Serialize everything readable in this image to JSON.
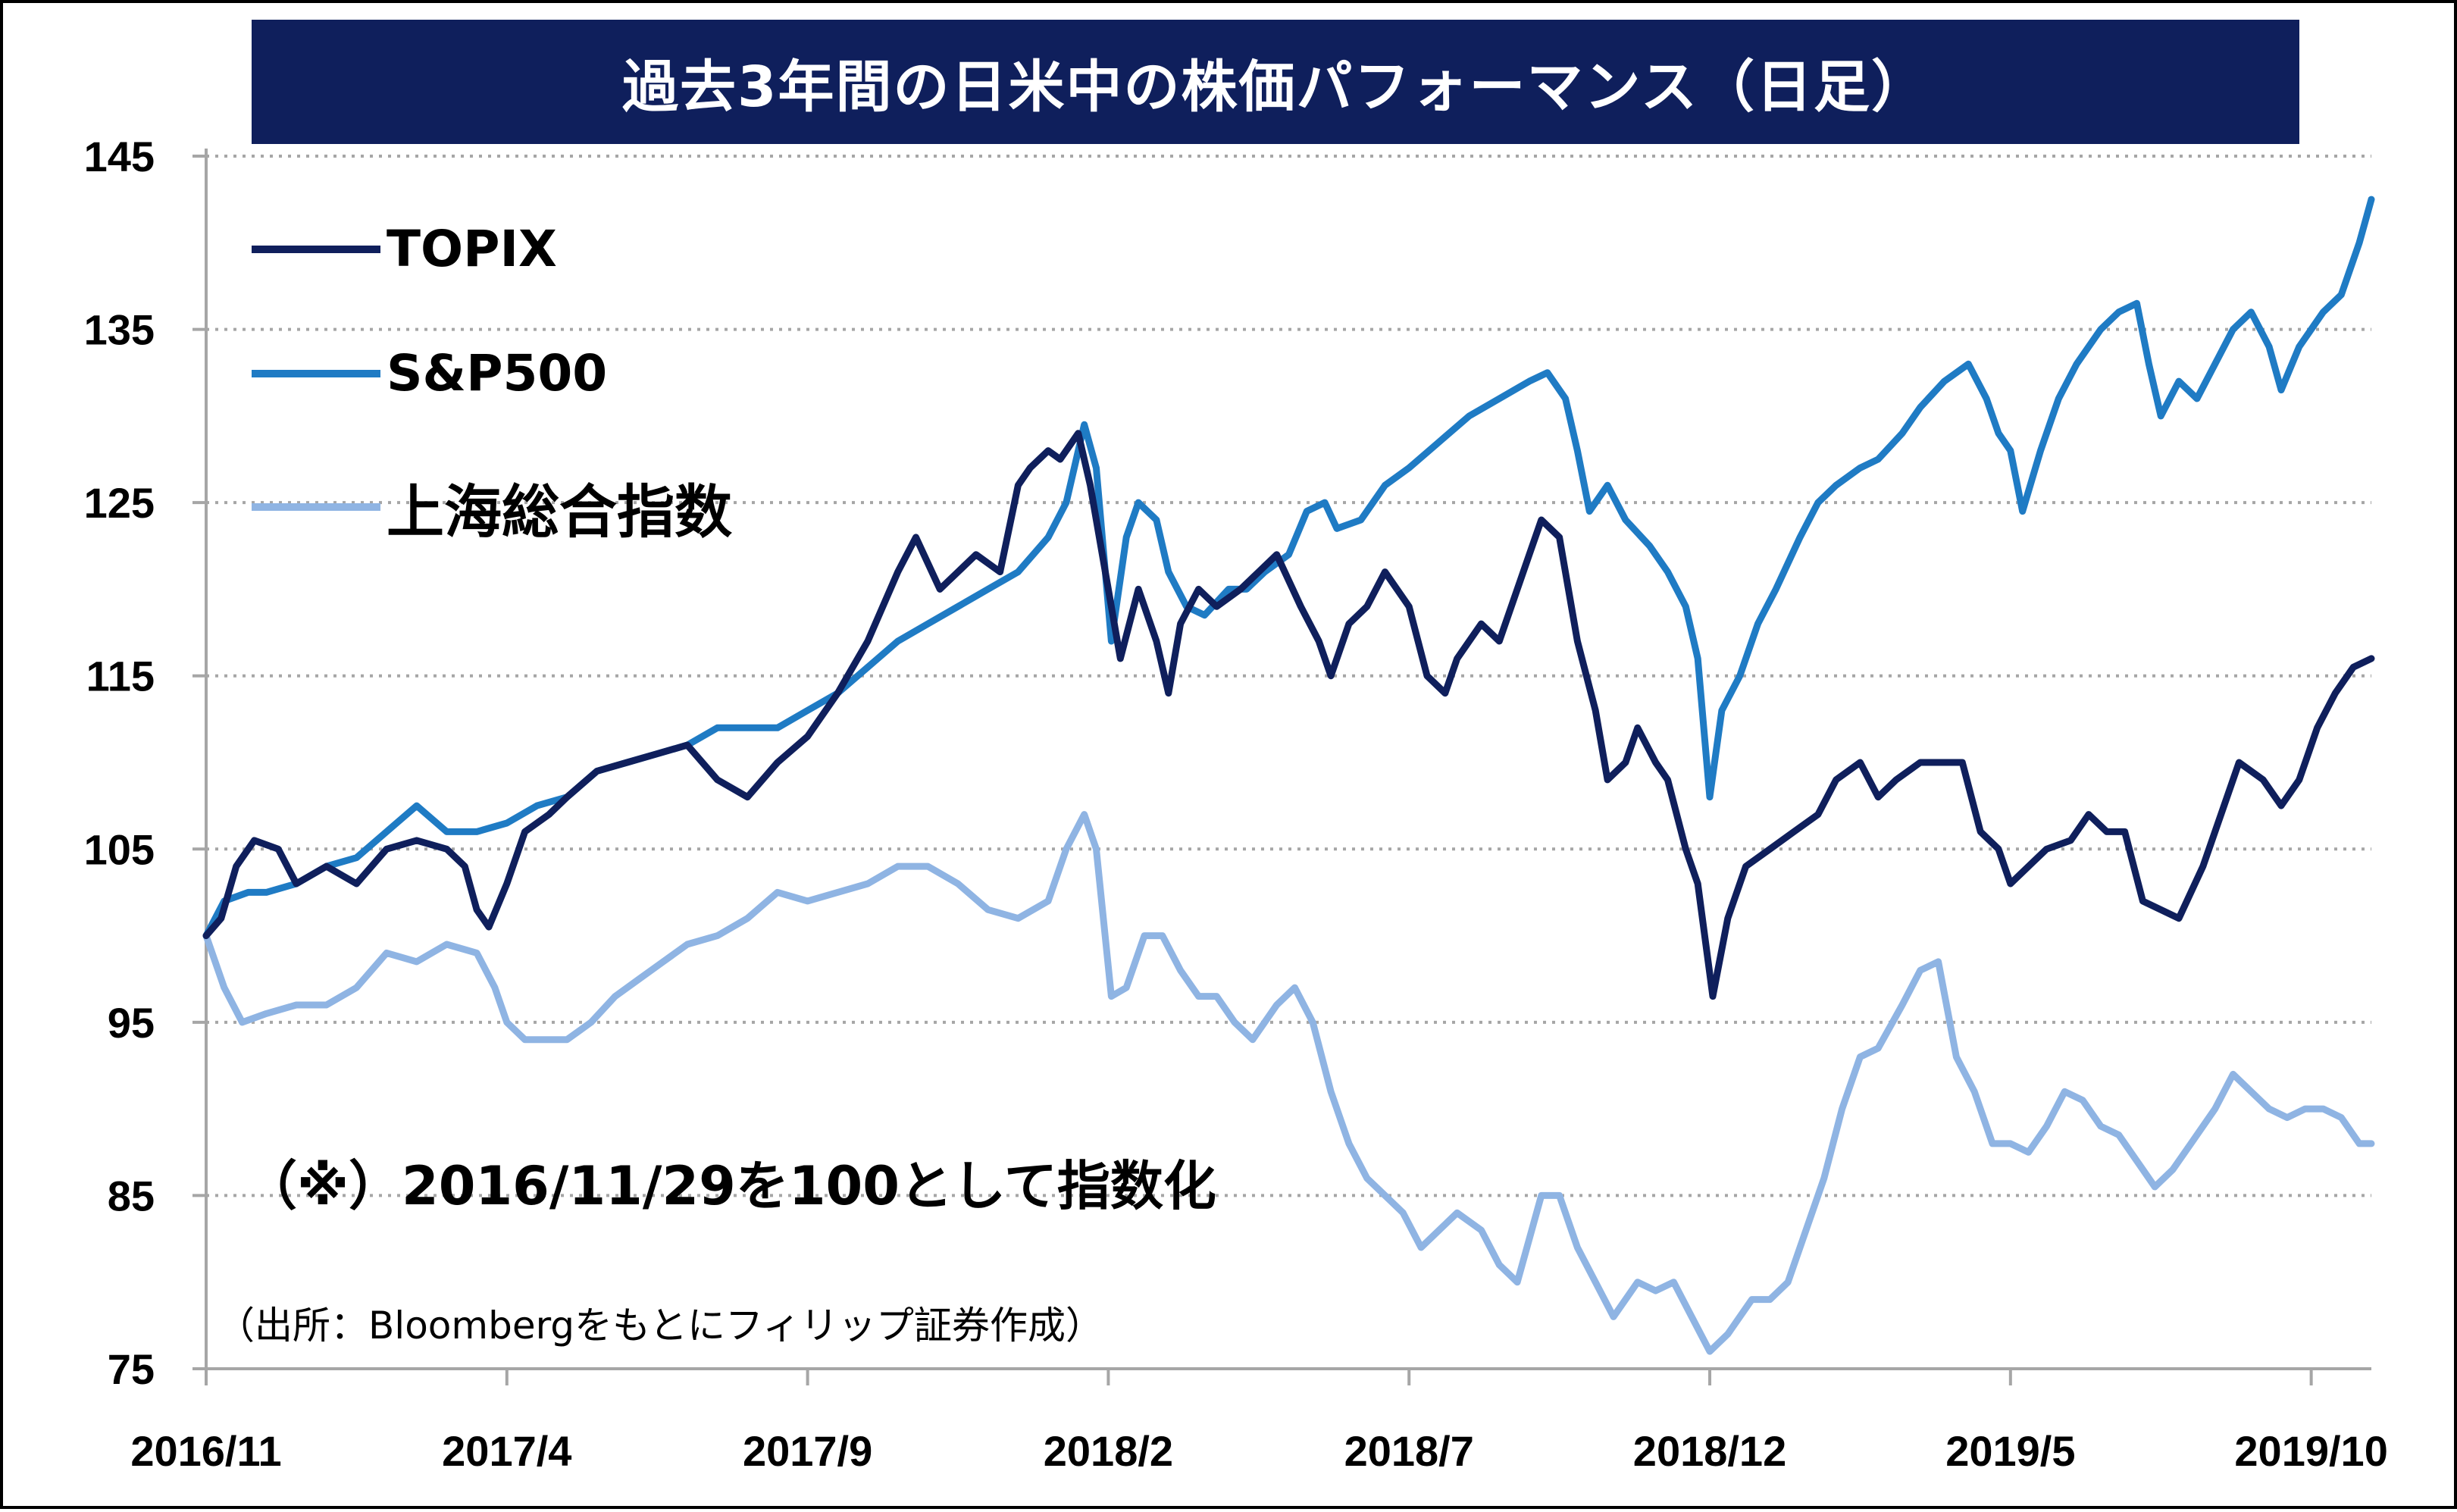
{
  "chart_data": {
    "type": "line",
    "title": "過去3年間の日米中の株価パフォーマンス（日足）",
    "note": "（※）2016/11/29を100として指数化",
    "source": "（出所：Bloombergをもとにフィリップ証券作成）",
    "ylim": [
      75,
      145
    ],
    "yticks": [
      "145",
      "135",
      "125",
      "115",
      "105",
      "95",
      "85",
      "75"
    ],
    "ytick_values": [
      145,
      135,
      125,
      115,
      105,
      95,
      85,
      75
    ],
    "xticks": [
      "2016/11",
      "2017/4",
      "2017/9",
      "2018/2",
      "2018/7",
      "2018/12",
      "2019/5",
      "2019/10"
    ],
    "xtick_values": [
      0,
      5,
      10,
      15,
      20,
      25,
      30,
      35
    ],
    "x_range": [
      0,
      36
    ],
    "x_note": "x values are months elapsed since 2016/11",
    "grid": true,
    "legend_position": "top-left",
    "series": [
      {
        "name": "TOPIX",
        "color": "#0f1f5c",
        "points": [
          [
            0,
            100
          ],
          [
            0.25,
            101
          ],
          [
            0.5,
            104
          ],
          [
            0.8,
            105.5
          ],
          [
            1.2,
            105
          ],
          [
            1.5,
            103
          ],
          [
            2,
            104
          ],
          [
            2.5,
            103
          ],
          [
            3,
            105
          ],
          [
            3.5,
            105.5
          ],
          [
            4,
            105
          ],
          [
            4.3,
            104
          ],
          [
            4.5,
            101.5
          ],
          [
            4.7,
            100.5
          ],
          [
            5,
            103
          ],
          [
            5.3,
            106
          ],
          [
            5.7,
            107
          ],
          [
            6,
            108
          ],
          [
            6.5,
            109.5
          ],
          [
            7,
            110
          ],
          [
            7.5,
            110.5
          ],
          [
            8,
            111
          ],
          [
            8.5,
            109
          ],
          [
            9,
            108
          ],
          [
            9.5,
            110
          ],
          [
            10,
            111.5
          ],
          [
            10.5,
            114
          ],
          [
            11,
            117
          ],
          [
            11.5,
            121
          ],
          [
            11.8,
            123
          ],
          [
            12.2,
            120
          ],
          [
            12.5,
            121
          ],
          [
            12.8,
            122
          ],
          [
            13.2,
            121
          ],
          [
            13.5,
            126
          ],
          [
            13.7,
            127
          ],
          [
            14,
            128
          ],
          [
            14.2,
            127.5
          ],
          [
            14.5,
            129
          ],
          [
            14.7,
            126
          ],
          [
            15,
            120
          ],
          [
            15.2,
            116
          ],
          [
            15.5,
            120
          ],
          [
            15.8,
            117
          ],
          [
            16,
            114
          ],
          [
            16.2,
            118
          ],
          [
            16.5,
            120
          ],
          [
            16.8,
            119
          ],
          [
            17.2,
            120
          ],
          [
            17.5,
            121
          ],
          [
            17.8,
            122
          ],
          [
            18.2,
            119
          ],
          [
            18.5,
            117
          ],
          [
            18.7,
            115
          ],
          [
            19,
            118
          ],
          [
            19.3,
            119
          ],
          [
            19.6,
            121
          ],
          [
            20,
            119
          ],
          [
            20.3,
            115
          ],
          [
            20.6,
            114
          ],
          [
            20.8,
            116
          ],
          [
            21.2,
            118
          ],
          [
            21.5,
            117
          ],
          [
            22,
            122
          ],
          [
            22.2,
            124
          ],
          [
            22.5,
            123
          ],
          [
            22.8,
            117
          ],
          [
            23.1,
            113
          ],
          [
            23.3,
            109
          ],
          [
            23.6,
            110
          ],
          [
            23.8,
            112
          ],
          [
            24.1,
            110
          ],
          [
            24.3,
            109
          ],
          [
            24.6,
            105
          ],
          [
            24.8,
            103
          ],
          [
            25.05,
            96.5
          ],
          [
            25.3,
            101
          ],
          [
            25.6,
            104
          ],
          [
            26,
            105
          ],
          [
            26.4,
            106
          ],
          [
            26.8,
            107
          ],
          [
            27.1,
            109
          ],
          [
            27.5,
            110
          ],
          [
            27.8,
            108
          ],
          [
            28.1,
            109
          ],
          [
            28.5,
            110
          ],
          [
            28.8,
            110
          ],
          [
            29.2,
            110
          ],
          [
            29.5,
            106
          ],
          [
            29.8,
            105
          ],
          [
            30,
            103
          ],
          [
            30.3,
            104
          ],
          [
            30.6,
            105
          ],
          [
            31,
            105.5
          ],
          [
            31.3,
            107
          ],
          [
            31.6,
            106
          ],
          [
            31.9,
            106
          ],
          [
            32.2,
            102
          ],
          [
            32.5,
            101.5
          ],
          [
            32.8,
            101
          ],
          [
            33.2,
            104
          ],
          [
            33.5,
            107
          ],
          [
            33.8,
            110
          ],
          [
            34.2,
            109
          ],
          [
            34.5,
            107.5
          ],
          [
            34.8,
            109
          ],
          [
            35.1,
            112
          ],
          [
            35.4,
            114
          ],
          [
            35.7,
            115.5
          ],
          [
            36,
            116
          ]
        ]
      },
      {
        "name": "S&P500",
        "color": "#1f7bc4",
        "points": [
          [
            0,
            100
          ],
          [
            0.3,
            102
          ],
          [
            0.7,
            102.5
          ],
          [
            1,
            102.5
          ],
          [
            1.5,
            103
          ],
          [
            2,
            104
          ],
          [
            2.5,
            104.5
          ],
          [
            3,
            106
          ],
          [
            3.5,
            107.5
          ],
          [
            4,
            106
          ],
          [
            4.5,
            106
          ],
          [
            5,
            106.5
          ],
          [
            5.5,
            107.5
          ],
          [
            6,
            108
          ],
          [
            6.5,
            109.5
          ],
          [
            7,
            110
          ],
          [
            7.5,
            110.5
          ],
          [
            8,
            111
          ],
          [
            8.5,
            112
          ],
          [
            9,
            112
          ],
          [
            9.5,
            112
          ],
          [
            10,
            113
          ],
          [
            10.5,
            114
          ],
          [
            11,
            115.5
          ],
          [
            11.5,
            117
          ],
          [
            12,
            118
          ],
          [
            12.5,
            119
          ],
          [
            13,
            120
          ],
          [
            13.5,
            121
          ],
          [
            14,
            123
          ],
          [
            14.3,
            125
          ],
          [
            14.6,
            129.5
          ],
          [
            14.8,
            127
          ],
          [
            15.05,
            117
          ],
          [
            15.3,
            123
          ],
          [
            15.5,
            125
          ],
          [
            15.8,
            124
          ],
          [
            16,
            121
          ],
          [
            16.3,
            119
          ],
          [
            16.6,
            118.5
          ],
          [
            17,
            120
          ],
          [
            17.3,
            120
          ],
          [
            17.6,
            121
          ],
          [
            18,
            122
          ],
          [
            18.3,
            124.5
          ],
          [
            18.6,
            125
          ],
          [
            18.8,
            123.5
          ],
          [
            19.2,
            124
          ],
          [
            19.6,
            126
          ],
          [
            20,
            127
          ],
          [
            20.5,
            128.5
          ],
          [
            21,
            130
          ],
          [
            21.5,
            131
          ],
          [
            22,
            132
          ],
          [
            22.3,
            132.5
          ],
          [
            22.6,
            131
          ],
          [
            22.8,
            128
          ],
          [
            23,
            124.5
          ],
          [
            23.3,
            126
          ],
          [
            23.6,
            124
          ],
          [
            24,
            122.5
          ],
          [
            24.3,
            121
          ],
          [
            24.6,
            119
          ],
          [
            24.8,
            116
          ],
          [
            25.0,
            108
          ],
          [
            25.2,
            113
          ],
          [
            25.5,
            115
          ],
          [
            25.8,
            118
          ],
          [
            26.1,
            120
          ],
          [
            26.5,
            123
          ],
          [
            26.8,
            125
          ],
          [
            27.1,
            126
          ],
          [
            27.5,
            127
          ],
          [
            27.8,
            127.5
          ],
          [
            28.2,
            129
          ],
          [
            28.5,
            130.5
          ],
          [
            28.9,
            132
          ],
          [
            29.3,
            133
          ],
          [
            29.6,
            131
          ],
          [
            29.8,
            129
          ],
          [
            30,
            128
          ],
          [
            30.2,
            124.5
          ],
          [
            30.5,
            128
          ],
          [
            30.8,
            131
          ],
          [
            31.1,
            133
          ],
          [
            31.5,
            135
          ],
          [
            31.8,
            136
          ],
          [
            32.1,
            136.5
          ],
          [
            32.3,
            133
          ],
          [
            32.5,
            130
          ],
          [
            32.8,
            132
          ],
          [
            33.1,
            131
          ],
          [
            33.4,
            133
          ],
          [
            33.7,
            135
          ],
          [
            34,
            136
          ],
          [
            34.3,
            134
          ],
          [
            34.5,
            131.5
          ],
          [
            34.8,
            134
          ],
          [
            35.2,
            136
          ],
          [
            35.5,
            137
          ],
          [
            35.8,
            140
          ],
          [
            36,
            142.5
          ]
        ]
      },
      {
        "name": "上海総合指数",
        "color": "#8fb4e3",
        "points": [
          [
            0,
            100
          ],
          [
            0.3,
            97
          ],
          [
            0.6,
            95
          ],
          [
            1,
            95.5
          ],
          [
            1.5,
            96
          ],
          [
            2,
            96
          ],
          [
            2.5,
            97
          ],
          [
            3,
            99
          ],
          [
            3.5,
            98.5
          ],
          [
            4,
            99.5
          ],
          [
            4.5,
            99
          ],
          [
            4.8,
            97
          ],
          [
            5,
            95
          ],
          [
            5.3,
            94
          ],
          [
            5.6,
            94
          ],
          [
            6,
            94
          ],
          [
            6.4,
            95
          ],
          [
            6.8,
            96.5
          ],
          [
            7.2,
            97.5
          ],
          [
            7.6,
            98.5
          ],
          [
            8,
            99.5
          ],
          [
            8.5,
            100
          ],
          [
            9,
            101
          ],
          [
            9.5,
            102.5
          ],
          [
            10,
            102
          ],
          [
            10.5,
            102.5
          ],
          [
            11,
            103
          ],
          [
            11.5,
            104
          ],
          [
            12,
            104
          ],
          [
            12.5,
            103
          ],
          [
            13,
            101.5
          ],
          [
            13.5,
            101
          ],
          [
            14,
            102
          ],
          [
            14.3,
            105
          ],
          [
            14.6,
            107
          ],
          [
            14.8,
            105
          ],
          [
            15.05,
            96.5
          ],
          [
            15.3,
            97
          ],
          [
            15.6,
            100
          ],
          [
            15.9,
            100
          ],
          [
            16.2,
            98
          ],
          [
            16.5,
            96.5
          ],
          [
            16.8,
            96.5
          ],
          [
            17.1,
            95
          ],
          [
            17.4,
            94
          ],
          [
            17.8,
            96
          ],
          [
            18.1,
            97
          ],
          [
            18.4,
            95
          ],
          [
            18.7,
            91
          ],
          [
            19,
            88
          ],
          [
            19.3,
            86
          ],
          [
            19.6,
            85
          ],
          [
            19.9,
            84
          ],
          [
            20.2,
            82
          ],
          [
            20.5,
            83
          ],
          [
            20.8,
            84
          ],
          [
            21.2,
            83
          ],
          [
            21.5,
            81
          ],
          [
            21.8,
            80
          ],
          [
            22.2,
            85
          ],
          [
            22.5,
            85
          ],
          [
            22.8,
            82
          ],
          [
            23.1,
            80
          ],
          [
            23.4,
            78
          ],
          [
            23.8,
            80
          ],
          [
            24.1,
            79.5
          ],
          [
            24.4,
            80
          ],
          [
            24.7,
            78
          ],
          [
            25.0,
            76
          ],
          [
            25.3,
            77
          ],
          [
            25.7,
            79
          ],
          [
            26,
            79
          ],
          [
            26.3,
            80
          ],
          [
            26.6,
            83
          ],
          [
            26.9,
            86
          ],
          [
            27.2,
            90
          ],
          [
            27.5,
            93
          ],
          [
            27.8,
            93.5
          ],
          [
            28.2,
            96
          ],
          [
            28.5,
            98
          ],
          [
            28.8,
            98.5
          ],
          [
            29.1,
            93
          ],
          [
            29.4,
            91
          ],
          [
            29.7,
            88
          ],
          [
            30,
            88
          ],
          [
            30.3,
            87.5
          ],
          [
            30.6,
            89
          ],
          [
            30.9,
            91
          ],
          [
            31.2,
            90.5
          ],
          [
            31.5,
            89
          ],
          [
            31.8,
            88.5
          ],
          [
            32.1,
            87
          ],
          [
            32.4,
            85.5
          ],
          [
            32.7,
            86.5
          ],
          [
            33,
            88
          ],
          [
            33.4,
            90
          ],
          [
            33.7,
            92
          ],
          [
            34,
            91
          ],
          [
            34.3,
            90
          ],
          [
            34.6,
            89.5
          ],
          [
            34.9,
            90
          ],
          [
            35.2,
            90
          ],
          [
            35.5,
            89.5
          ],
          [
            35.8,
            88
          ],
          [
            36,
            88
          ]
        ]
      }
    ]
  }
}
